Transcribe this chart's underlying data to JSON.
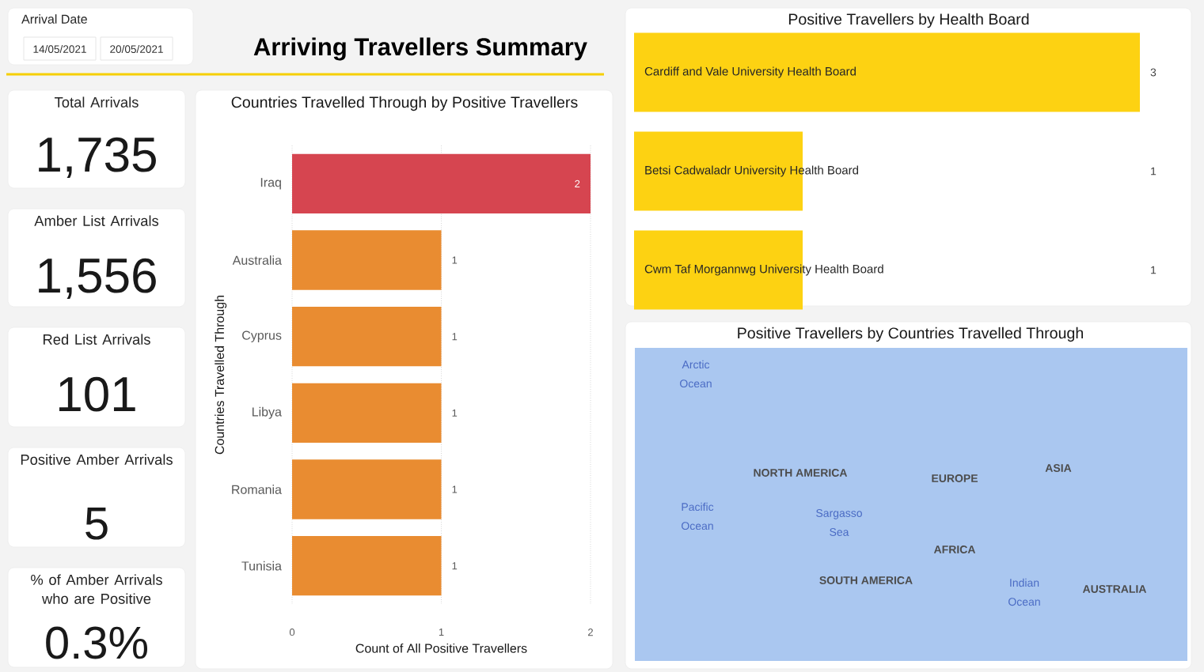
{
  "chart_data": [
    {
      "type": "other",
      "title": "Arrival Date",
      "annotations": [
        "14/05/2021",
        "20/05/2021"
      ]
    },
    {
      "type": "other",
      "title": "Arriving Travellers Summary"
    },
    {
      "type": "bar",
      "title": "Positive Travellers by Health Board",
      "orientation": "horizontal",
      "categories": [
        "Cardiff and Vale University Health Board",
        "Betsi Cadwaladr University Health Board",
        "Cwm Taf Morgannwg University Health Board"
      ],
      "values": [
        3,
        1,
        1
      ],
      "color": "#fdd212",
      "data_labels": true
    },
    {
      "type": "other",
      "title": "Total Arrivals",
      "annotations": [
        "1,735"
      ]
    },
    {
      "type": "other",
      "title": "Amber List Arrivals",
      "annotations": [
        "1,556"
      ]
    },
    {
      "type": "other",
      "title": "Red List Arrivals",
      "annotations": [
        "101"
      ]
    },
    {
      "type": "other",
      "title": "Positive Amber Arrivals",
      "annotations": [
        "5"
      ]
    },
    {
      "type": "other",
      "title": "% of Amber Arrivals who are Positive",
      "annotations": [
        "0.3%"
      ]
    },
    {
      "type": "bar",
      "title": "Countries Travelled Through by Positive Travellers",
      "xlabel": "Count of All Positive Travellers",
      "ylabel": "Countries Travelled Through",
      "orientation": "horizontal",
      "categories": [
        "Iraq",
        "Australia",
        "Cyprus",
        "Libya",
        "Romania",
        "Tunisia"
      ],
      "values": [
        2,
        1,
        1,
        1,
        1,
        1
      ],
      "colors": [
        "#d64550",
        "#e98c31",
        "#e98c31",
        "#e98c31",
        "#e98c31",
        "#e98c31"
      ],
      "xlim": [
        0,
        2
      ],
      "xticks": [
        0,
        1,
        2
      ],
      "grid": "x",
      "data_labels": true
    },
    {
      "type": "other",
      "title": "Positive Travellers by Countries Travelled Through",
      "annotations": [
        "Arctic Ocean",
        "Pacific Ocean",
        "NORTH AMERICA",
        "Sargasso Sea",
        "SOUTH AMERICA",
        "EUROPE",
        "AFRICA",
        "ASIA",
        "Indian Ocean",
        "AUSTRALIA"
      ]
    }
  ]
}
